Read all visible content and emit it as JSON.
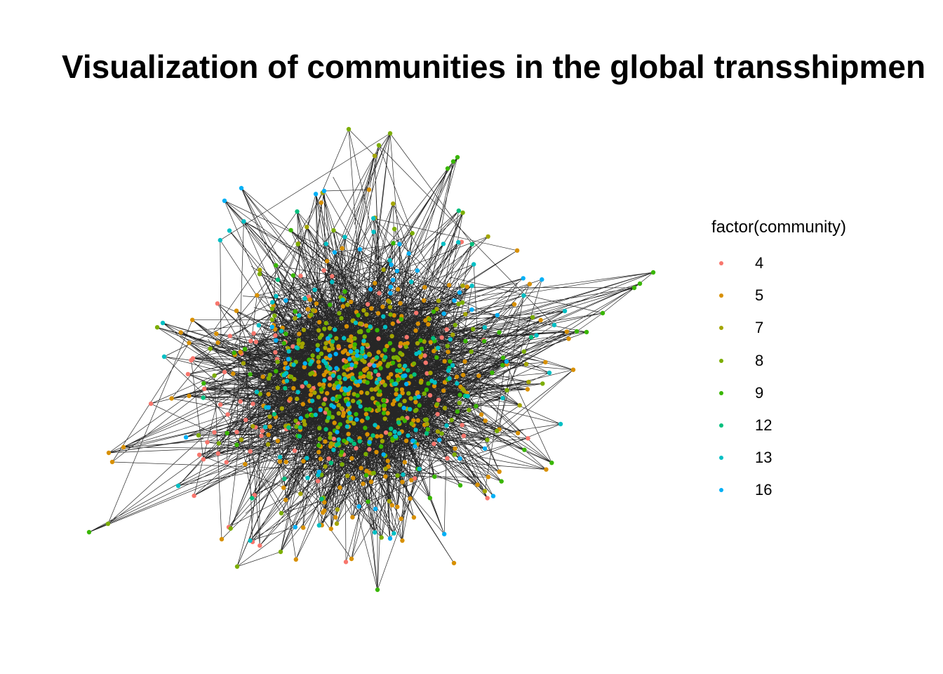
{
  "title": "Visualization of communities in the global transshipmen",
  "legend": {
    "title": "factor(community)",
    "items": [
      {
        "label": "4",
        "color": "#F8766D"
      },
      {
        "label": "5",
        "color": "#D89000"
      },
      {
        "label": "7",
        "color": "#A3A500"
      },
      {
        "label": "8",
        "color": "#7CAE00"
      },
      {
        "label": "9",
        "color": "#39B600"
      },
      {
        "label": "12",
        "color": "#00BF7D"
      },
      {
        "label": "13",
        "color": "#00BFC4"
      },
      {
        "label": "16",
        "color": "#00B0F6"
      }
    ]
  },
  "diagram": {
    "type": "force-directed network",
    "edge_color": "#000000",
    "background": "#ffffff"
  }
}
